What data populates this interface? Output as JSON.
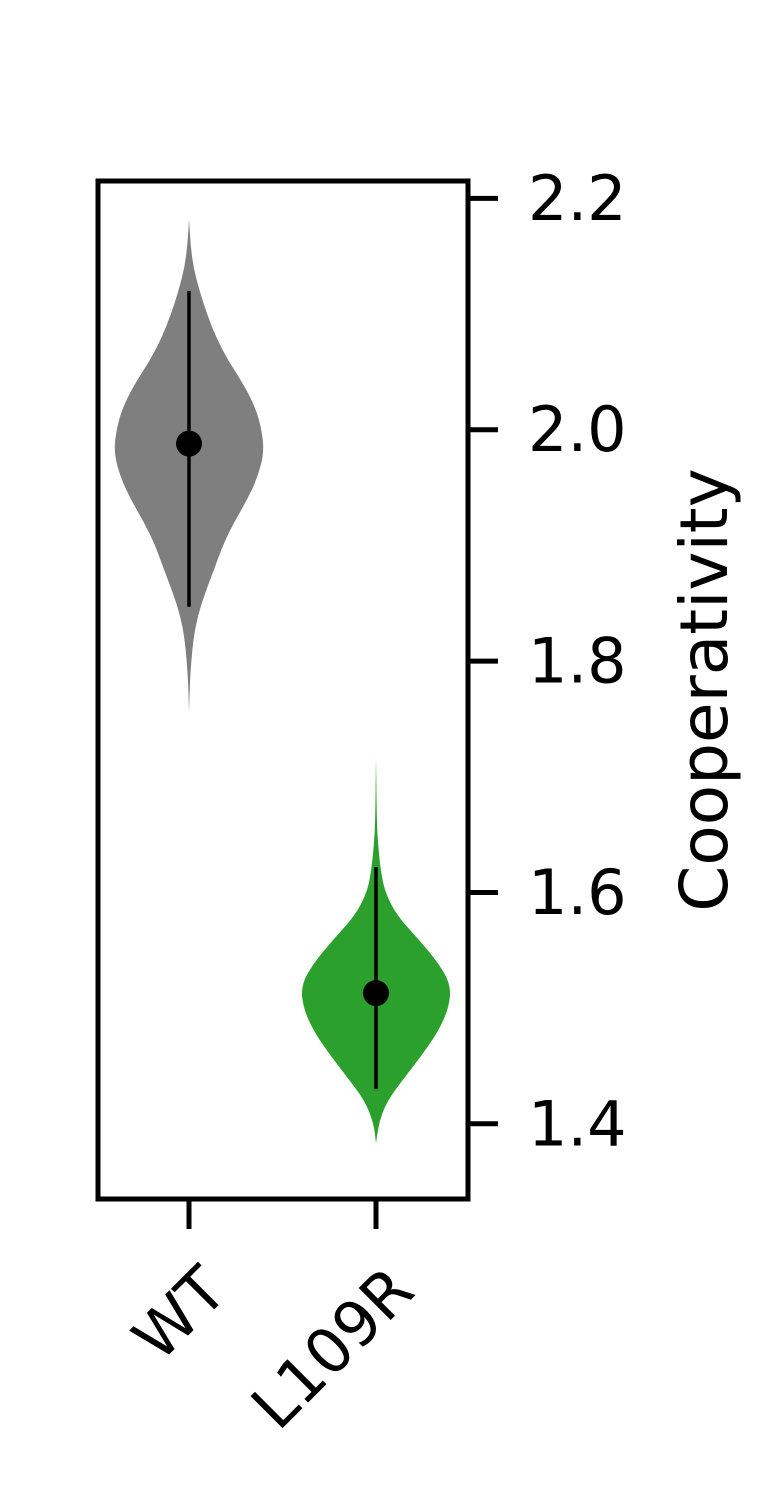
{
  "chart_data": {
    "type": "violin",
    "title": "",
    "xlabel": "",
    "ylabel": "Cooperativity",
    "y_axis_side": "right",
    "ylim": [
      1.335,
      2.215
    ],
    "yticks": [
      1.4,
      1.6,
      1.8,
      2.0,
      2.2
    ],
    "ytick_labels": [
      "1.4",
      "1.6",
      "1.8",
      "2.0",
      "2.2"
    ],
    "grid": false,
    "categories": [
      "WT",
      "L109R"
    ],
    "series": [
      {
        "category": "WT",
        "color": "#7f7f7f",
        "center": 1.988,
        "whisker_low": 1.847,
        "whisker_high": 2.12,
        "min": 1.756,
        "max": 2.182,
        "profile": [
          [
            1.756,
            0.0
          ],
          [
            1.78,
            0.01
          ],
          [
            1.8,
            0.03
          ],
          [
            1.82,
            0.06
          ],
          [
            1.84,
            0.12
          ],
          [
            1.86,
            0.22
          ],
          [
            1.88,
            0.34
          ],
          [
            1.9,
            0.45
          ],
          [
            1.92,
            0.6
          ],
          [
            1.94,
            0.78
          ],
          [
            1.96,
            0.92
          ],
          [
            1.98,
            1.0
          ],
          [
            2.0,
            0.97
          ],
          [
            2.02,
            0.88
          ],
          [
            2.04,
            0.72
          ],
          [
            2.06,
            0.52
          ],
          [
            2.08,
            0.36
          ],
          [
            2.1,
            0.24
          ],
          [
            2.12,
            0.14
          ],
          [
            2.14,
            0.06
          ],
          [
            2.16,
            0.02
          ],
          [
            2.182,
            0.0
          ]
        ]
      },
      {
        "category": "L109R",
        "color": "#2ca02c",
        "center": 1.513,
        "whisker_low": 1.43,
        "whisker_high": 1.622,
        "min": 1.383,
        "max": 1.717,
        "profile": [
          [
            1.383,
            0.0
          ],
          [
            1.4,
            0.03
          ],
          [
            1.42,
            0.15
          ],
          [
            1.44,
            0.38
          ],
          [
            1.46,
            0.62
          ],
          [
            1.48,
            0.83
          ],
          [
            1.5,
            0.97
          ],
          [
            1.52,
            1.0
          ],
          [
            1.54,
            0.82
          ],
          [
            1.56,
            0.56
          ],
          [
            1.58,
            0.28
          ],
          [
            1.6,
            0.12
          ],
          [
            1.62,
            0.06
          ],
          [
            1.64,
            0.03
          ],
          [
            1.66,
            0.01
          ],
          [
            1.717,
            0.0
          ]
        ]
      }
    ]
  }
}
